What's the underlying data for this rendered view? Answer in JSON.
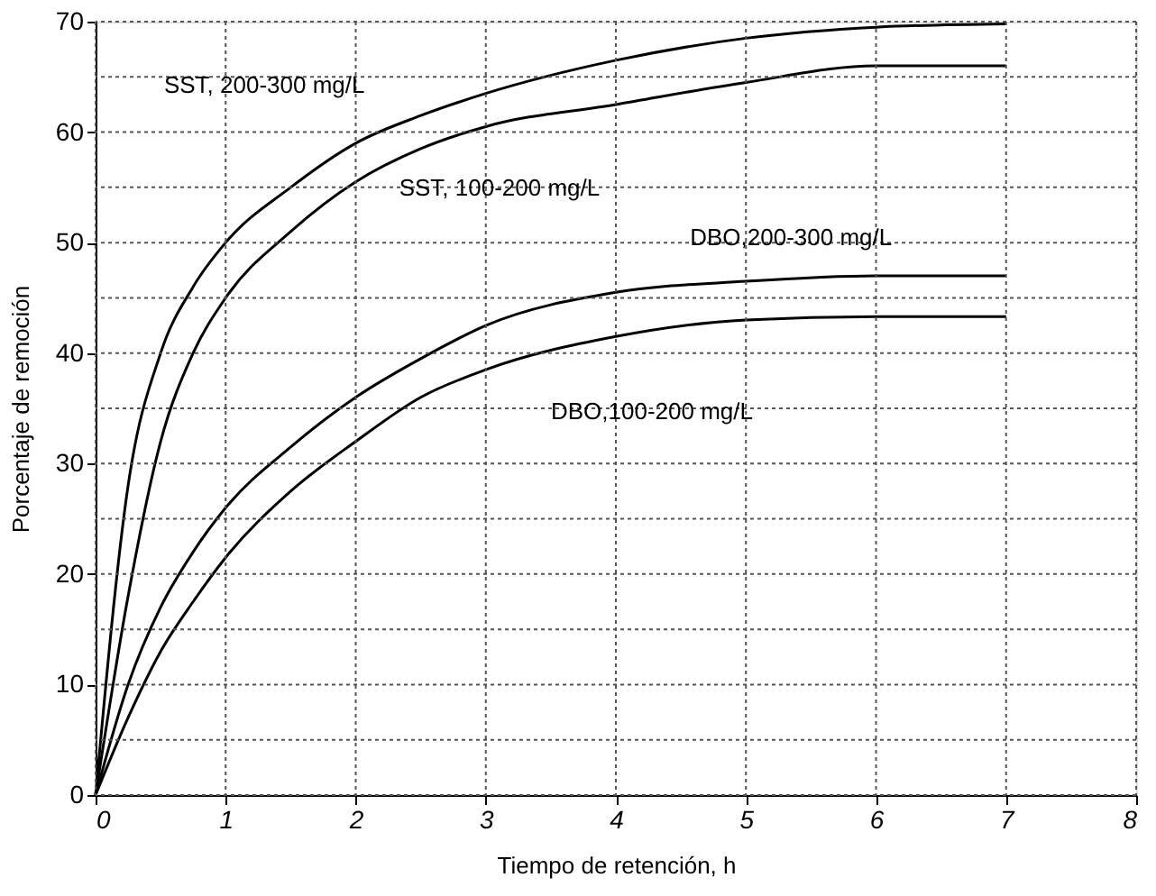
{
  "chart_data": {
    "type": "line",
    "xlabel": "Tiempo de retención, h",
    "ylabel": "Porcentaje de remoción",
    "x": [
      0,
      0.25,
      0.5,
      0.75,
      1,
      1.5,
      2,
      2.5,
      3,
      4,
      5,
      6,
      7
    ],
    "series": [
      {
        "name": "SST, 200-300 mg/L",
        "color": "#000000",
        "values": [
          0,
          28,
          40,
          46,
          50,
          55,
          59,
          61.5,
          63.5,
          66.5,
          68.5,
          69.5,
          69.8
        ]
      },
      {
        "name": "SST, 100-200 mg/L",
        "color": "#000000",
        "values": [
          0,
          18,
          32,
          40,
          45,
          51,
          55.5,
          58.5,
          60.5,
          62.5,
          64.5,
          66,
          66
        ]
      },
      {
        "name": "DBO,200-300 mg/L",
        "color": "#000000",
        "values": [
          0,
          10,
          17,
          22,
          26,
          31.5,
          36,
          39.5,
          42.5,
          45.5,
          46.5,
          47,
          47
        ]
      },
      {
        "name": "DBO,100-200 mg/L",
        "color": "#000000",
        "values": [
          0,
          7,
          13,
          17.5,
          21.5,
          27.5,
          32,
          36,
          38.5,
          41.5,
          43,
          43.3,
          43.3
        ]
      }
    ],
    "xlim": [
      0,
      8
    ],
    "xticks": [
      0,
      1,
      2,
      3,
      4,
      5,
      6,
      7,
      8
    ],
    "ylim": [
      0,
      70
    ],
    "yticks": [
      0,
      {
        "value": 5,
        "label": null
      },
      10,
      {
        "value": 15,
        "label": null
      },
      20,
      {
        "value": 25,
        "label": null
      },
      30,
      {
        "value": 35,
        "label": null
      },
      40,
      {
        "value": 45,
        "label": null
      },
      50,
      {
        "value": 55,
        "label": null
      },
      60,
      {
        "value": 65,
        "label": null
      },
      70
    ],
    "grid": true,
    "legend": false,
    "marker": "none",
    "line_style": "solid"
  }
}
